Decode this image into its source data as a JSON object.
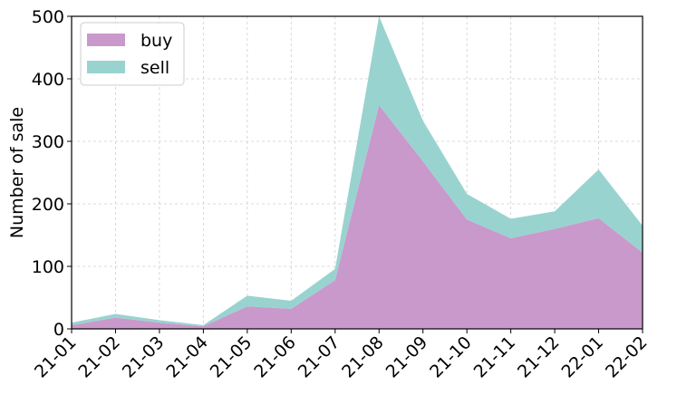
{
  "chart_data": {
    "type": "area",
    "stacked": true,
    "categories": [
      "21-01",
      "21-02",
      "21-03",
      "21-04",
      "21-05",
      "21-06",
      "21-07",
      "21-08",
      "21-09",
      "21-10",
      "21-11",
      "21-12",
      "22-01",
      "22-02"
    ],
    "series": [
      {
        "name": "buy",
        "color": "#c999cb",
        "values": [
          6,
          18,
          10,
          4,
          36,
          32,
          78,
          358,
          268,
          175,
          145,
          160,
          177,
          122
        ]
      },
      {
        "name": "sell",
        "color": "#99d3d0",
        "values": [
          4,
          6,
          4,
          2,
          17,
          13,
          18,
          142,
          65,
          41,
          31,
          28,
          78,
          43
        ]
      }
    ],
    "ylabel": "Number of sale",
    "xlabel": "",
    "ylim": [
      0,
      500
    ],
    "yticks": [
      0,
      100,
      200,
      300,
      400,
      500
    ],
    "grid": true,
    "legend_position": "top-left"
  }
}
